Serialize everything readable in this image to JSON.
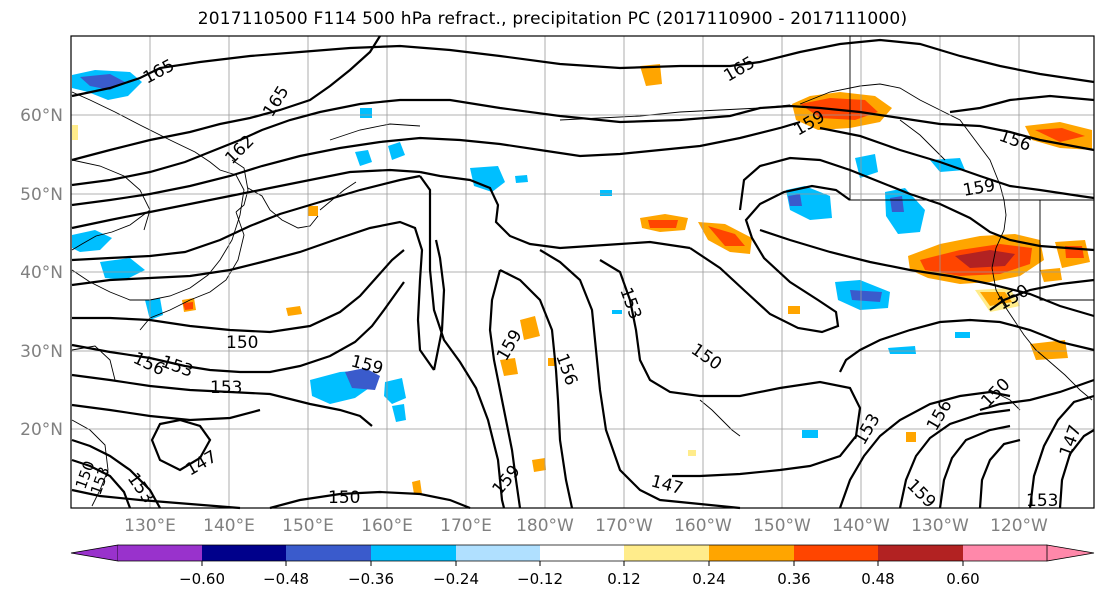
{
  "title": "2017110500 F114 500 hPa refract., precipitation PC (2017110900 - 2017111000)",
  "latitude_labels": [
    "60°N",
    "50°N",
    "40°N",
    "30°N",
    "20°N"
  ],
  "longitude_labels": [
    "130°E",
    "140°E",
    "150°E",
    "160°E",
    "170°E",
    "180°W",
    "170°W",
    "160°W",
    "150°W",
    "140°W",
    "130°W",
    "120°W"
  ],
  "contour_labels": [
    "165",
    "165",
    "165",
    "162",
    "159",
    "156",
    "159",
    "153",
    "150",
    "150",
    "156",
    "153",
    "150",
    "159",
    "159",
    "156",
    "147",
    "159",
    "147",
    "153",
    "150",
    "150",
    "153",
    "156",
    "159",
    "147",
    "153",
    "153",
    "150",
    "153"
  ],
  "colorbar": {
    "tick_labels": [
      "−0.60",
      "−0.48",
      "−0.36",
      "−0.24",
      "−0.12",
      "0.12",
      "0.24",
      "0.36",
      "0.48",
      "0.60"
    ],
    "colors": [
      "#9932cc",
      "#00008b",
      "#3a5bcc",
      "#00bfff",
      "#b0e0ff",
      "#ffffff",
      "#ffec8b",
      "#ffa500",
      "#ff4500",
      "#b22222",
      "#ff88aa"
    ]
  },
  "colors": {
    "neg_light": "#00bfff",
    "neg_mid": "#3a5bcc",
    "pos_light": "#ffec8b",
    "pos_mid": "#ffa500",
    "pos_strong": "#ff4500",
    "pos_dark": "#b22222",
    "grid": "#999999",
    "axis_label": "#808080"
  }
}
